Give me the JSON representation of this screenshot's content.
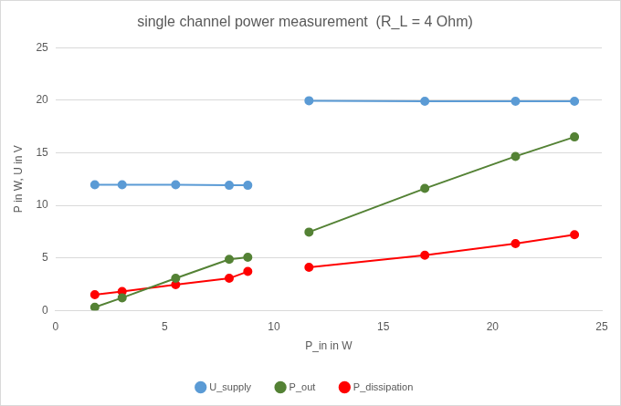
{
  "chart_data": {
    "type": "line",
    "title": "single channel power measurement  (R_L = 4 Ohm)",
    "x_label": "P_in in W",
    "y_label": "P in W, U in V",
    "x": [
      1.8,
      3.05,
      5.5,
      7.95,
      8.8,
      null,
      11.6,
      16.9,
      21.05,
      23.75
    ],
    "series": [
      {
        "name": "U_supply",
        "color": "#5b9bd5",
        "marker": "circle",
        "line_style": "solid",
        "values": [
          11.95,
          11.95,
          11.95,
          11.9,
          11.9,
          null,
          19.95,
          19.9,
          19.9,
          19.9
        ]
      },
      {
        "name": "P_out",
        "color": "#548235",
        "marker": "circle",
        "line_style": "solid",
        "values": [
          0.3,
          1.2,
          3.05,
          4.85,
          5.05,
          null,
          7.45,
          11.6,
          14.65,
          16.5
        ]
      },
      {
        "name": "P_dissipation",
        "color": "#ff0000",
        "marker": "circle",
        "line_style": "solid",
        "values": [
          1.5,
          1.8,
          2.45,
          3.05,
          3.7,
          null,
          4.1,
          5.25,
          6.35,
          7.2
        ]
      }
    ],
    "xlim": [
      0,
      25
    ],
    "xticks": [
      0,
      5,
      10,
      15,
      20,
      25
    ],
    "ylim": [
      0,
      25
    ],
    "yticks": [
      0,
      5,
      10,
      15,
      20,
      25
    ],
    "grid": true,
    "legend": "bottom"
  }
}
